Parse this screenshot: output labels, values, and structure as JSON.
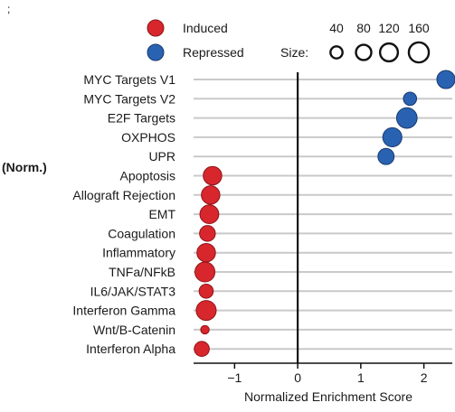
{
  "chart_data": {
    "type": "scatter",
    "xlabel": "Normalized Enrichment Score",
    "side_label": "(Norm.)",
    "corner_mark": ";",
    "xlim": [
      -1.65,
      2.45
    ],
    "xticks": [
      -1,
      0,
      1,
      2
    ],
    "xtick_labels": [
      "−1",
      "0",
      "1",
      "2"
    ],
    "vline": 0,
    "grid": "horizontal",
    "legend_position": "top",
    "colors": {
      "induced": "#d8262d",
      "repressed": "#2a62b2",
      "grid": "#c9c9c9"
    },
    "legend": {
      "items": [
        {
          "label": "Induced",
          "color": "#d8262d"
        },
        {
          "label": "Repressed",
          "color": "#2a62b2"
        }
      ],
      "size_title": "Size:",
      "sizes": [
        40,
        80,
        120,
        160
      ],
      "size_labels": [
        "40",
        "80",
        "120",
        "160"
      ]
    },
    "categories": [
      "MYC Targets V1",
      "MYC Targets V2",
      "E2F Targets",
      "OXPHOS",
      "UPR",
      "Apoptosis",
      "Allograft Rejection",
      "EMT",
      "Coagulation",
      "Inflammatory",
      "TNFa/NFkB",
      "IL6/JAK/STAT3",
      "Interferon Gamma",
      "Wnt/B-Catenin",
      "Interferon Alpha"
    ],
    "series": [
      {
        "name": "Repressed",
        "color": "#2a62b2",
        "points": [
          {
            "category": "MYC Targets V1",
            "x": 2.35,
            "size": 110
          },
          {
            "category": "MYC Targets V2",
            "x": 1.78,
            "size": 45
          },
          {
            "category": "E2F Targets",
            "x": 1.73,
            "size": 150
          },
          {
            "category": "OXPHOS",
            "x": 1.5,
            "size": 125
          },
          {
            "category": "UPR",
            "x": 1.4,
            "size": 80
          }
        ]
      },
      {
        "name": "Induced",
        "color": "#d8262d",
        "points": [
          {
            "category": "Apoptosis",
            "x": -1.35,
            "size": 115
          },
          {
            "category": "Allograft Rejection",
            "x": -1.38,
            "size": 115
          },
          {
            "category": "EMT",
            "x": -1.4,
            "size": 120
          },
          {
            "category": "Coagulation",
            "x": -1.43,
            "size": 75
          },
          {
            "category": "Inflammatory",
            "x": -1.45,
            "size": 115
          },
          {
            "category": "TNFa/NFkB",
            "x": -1.47,
            "size": 140
          },
          {
            "category": "IL6/JAK/STAT3",
            "x": -1.45,
            "size": 55
          },
          {
            "category": "Interferon Gamma",
            "x": -1.45,
            "size": 140
          },
          {
            "category": "Wnt/B-Catenin",
            "x": -1.47,
            "size": 10
          },
          {
            "category": "Interferon Alpha",
            "x": -1.52,
            "size": 65
          }
        ]
      }
    ]
  }
}
